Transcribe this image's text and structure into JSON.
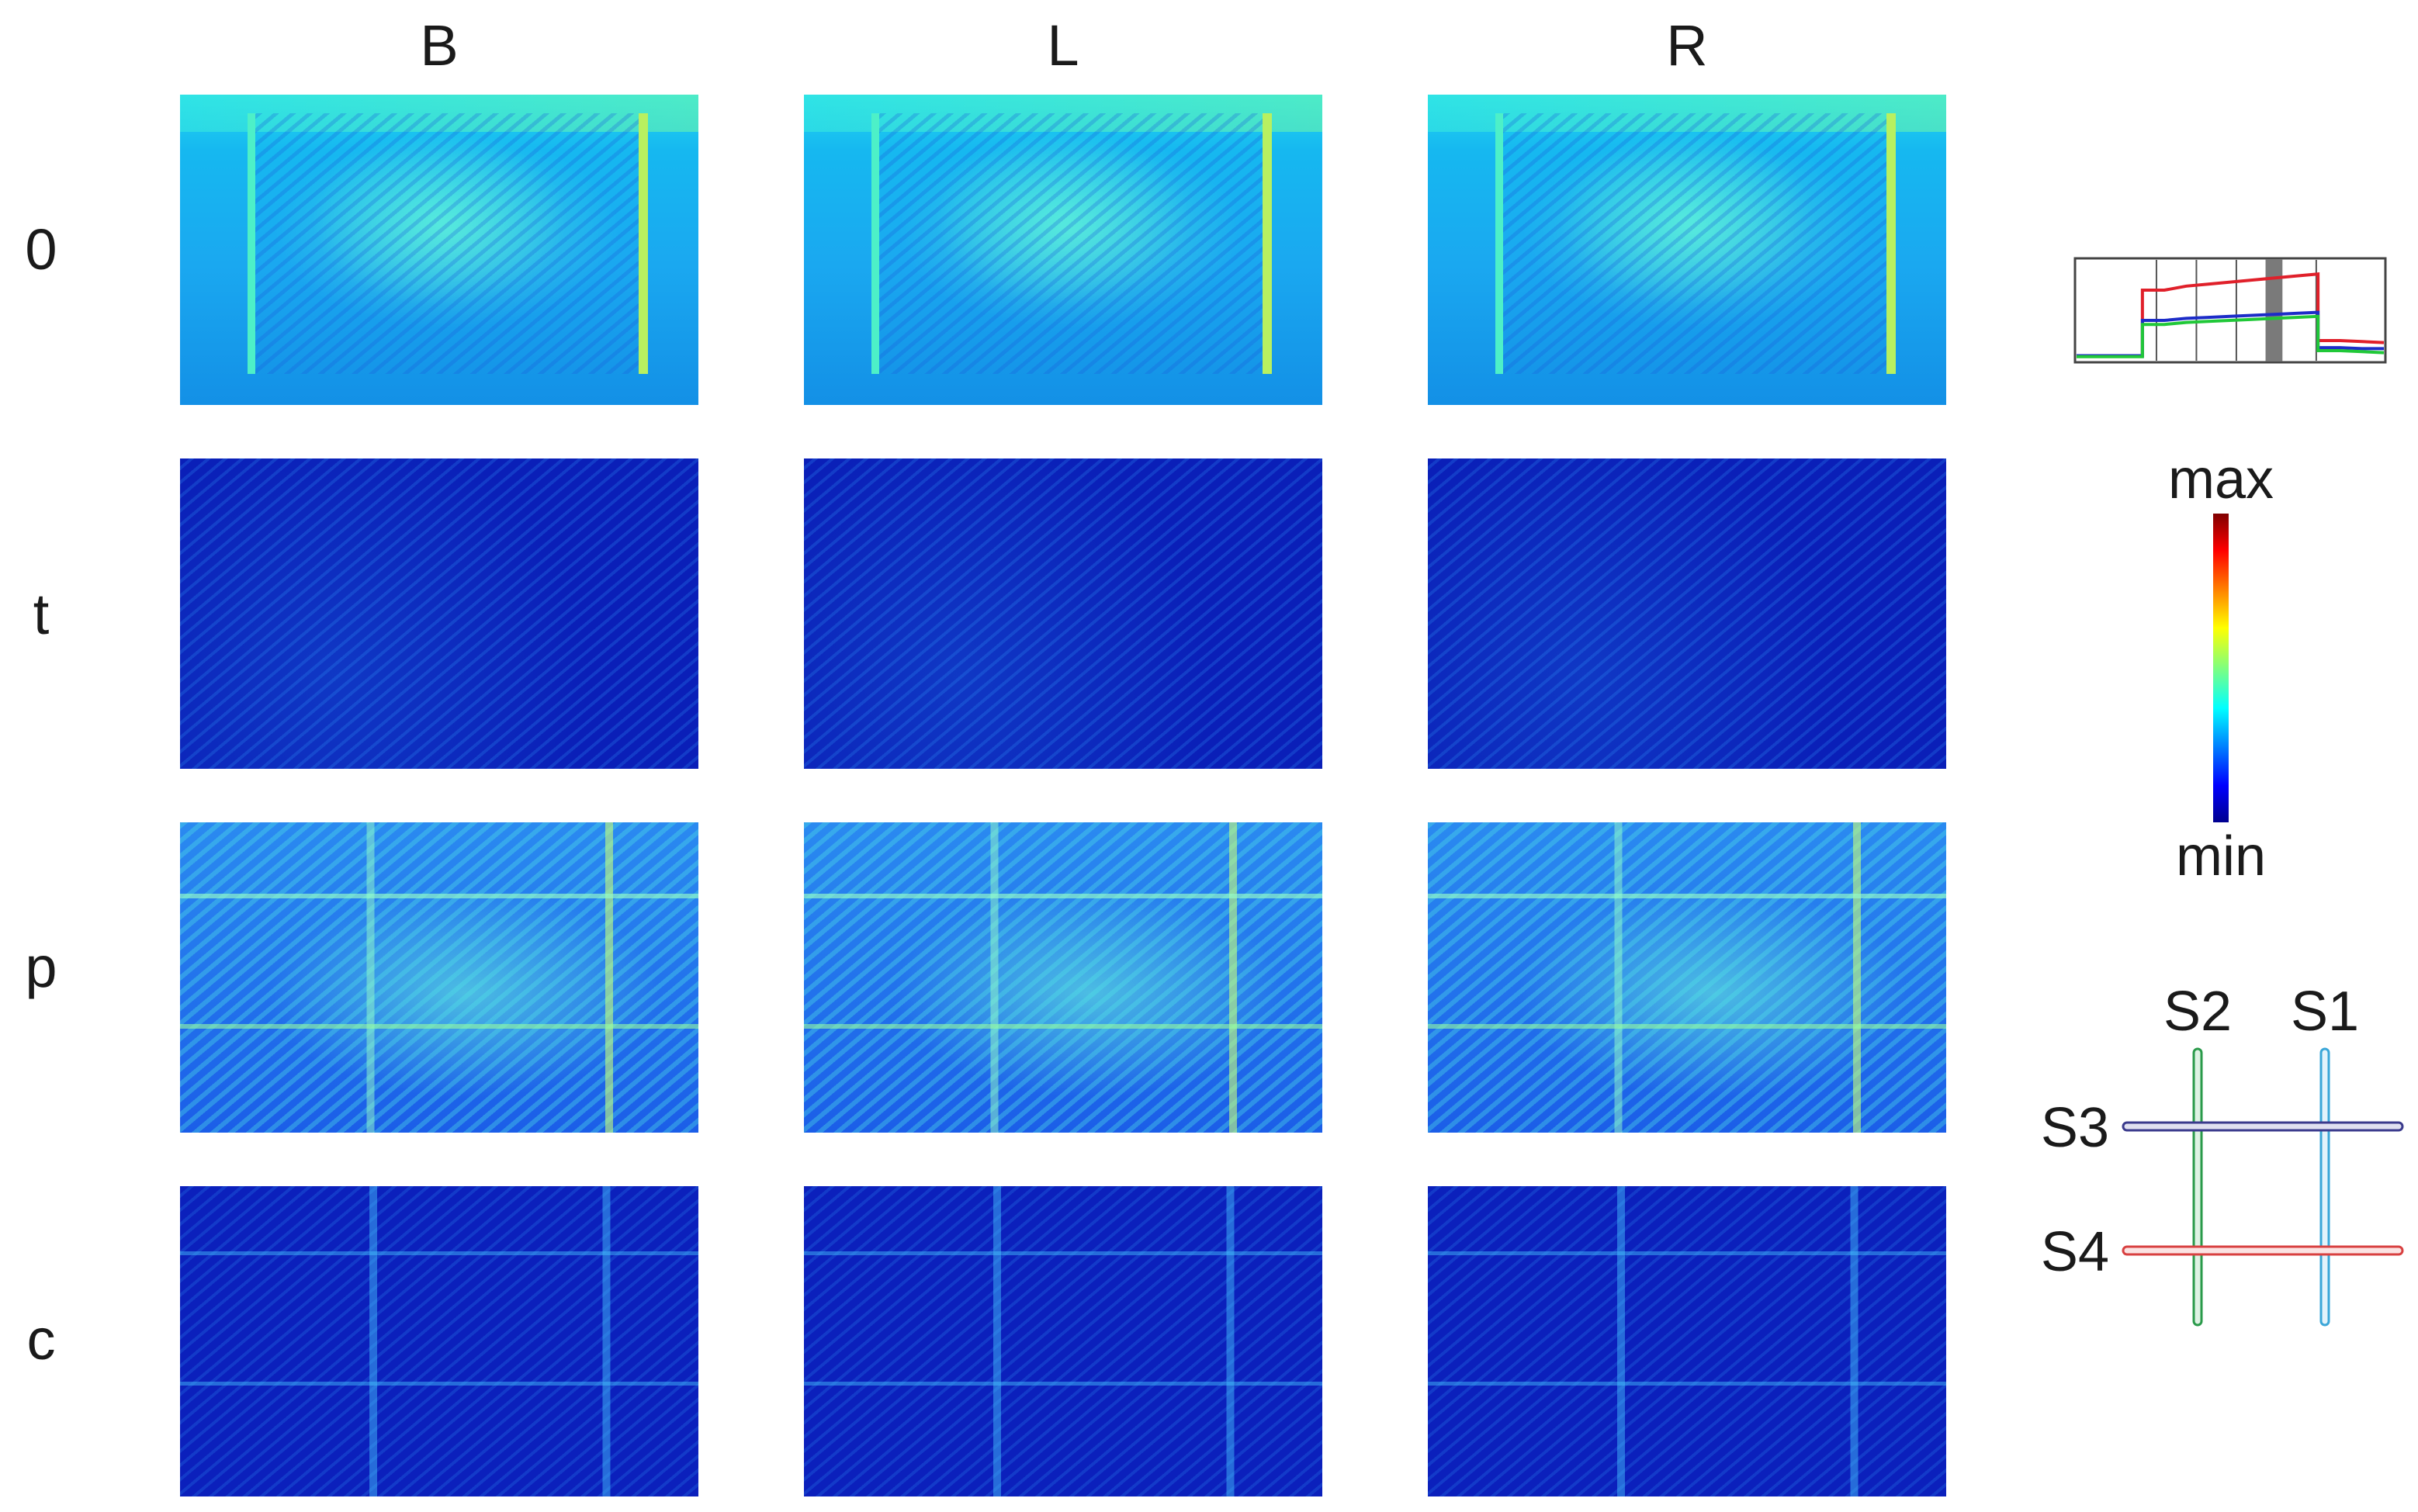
{
  "columns": [
    "B",
    "L",
    "R"
  ],
  "rows": [
    "0",
    "t",
    "p",
    "c"
  ],
  "colorbar": {
    "max_label": "max",
    "min_label": "min"
  },
  "inset": {
    "series": [
      {
        "color": "#e0202a",
        "values": [
          0.05,
          0.05,
          0.05,
          0.05,
          0.7,
          0.74,
          0.76,
          0.78,
          0.8,
          0.82,
          0.84,
          0.86,
          0.2,
          0.19,
          0.18
        ]
      },
      {
        "color": "#1c2cc8",
        "values": [
          0.05,
          0.05,
          0.05,
          0.05,
          0.4,
          0.42,
          0.43,
          0.44,
          0.45,
          0.46,
          0.47,
          0.48,
          0.13,
          0.12,
          0.12
        ]
      },
      {
        "color": "#20c838",
        "values": [
          0.04,
          0.04,
          0.04,
          0.04,
          0.36,
          0.38,
          0.39,
          0.4,
          0.41,
          0.42,
          0.43,
          0.44,
          0.1,
          0.09,
          0.08
        ]
      }
    ],
    "step_on_index": 4,
    "step_off_index": 12,
    "highlight_fraction": [
      0.615,
      0.67
    ],
    "vlines_fraction": [
      0.26,
      0.39,
      0.52,
      0.65,
      0.78
    ]
  },
  "sensor_labels": [
    "S2",
    "S1",
    "S3",
    "S4"
  ],
  "sensor_colors": {
    "S1": "#3aa6d8",
    "S2": "#2a9a4a",
    "S3": "#3a3a8c",
    "S4": "#d84040"
  }
}
